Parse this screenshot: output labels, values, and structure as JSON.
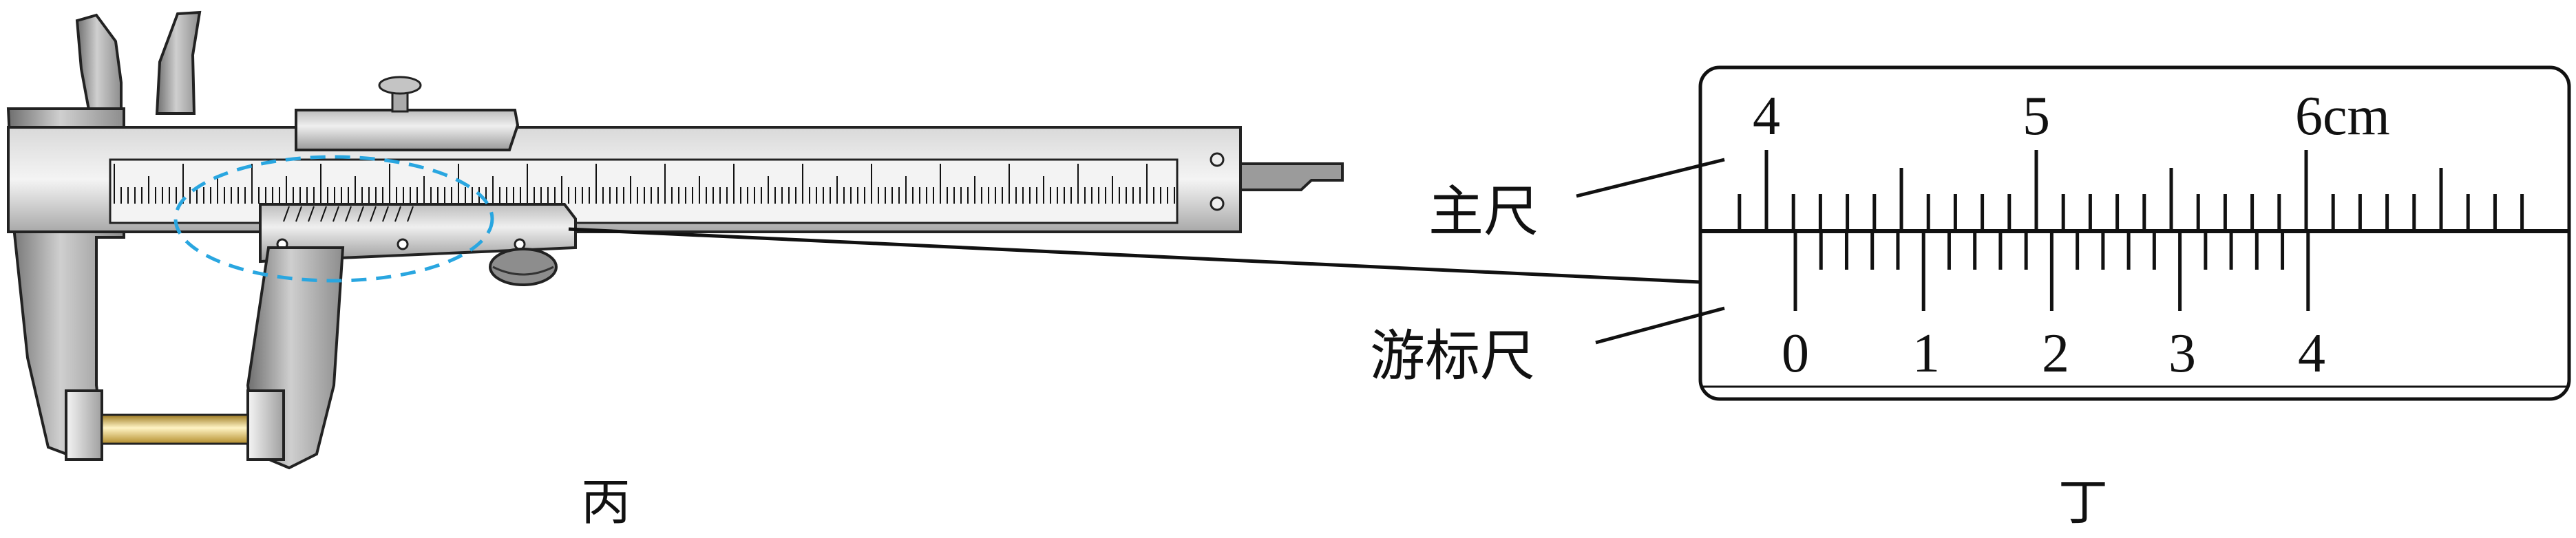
{
  "caliper": {
    "caption": "丙"
  },
  "detail": {
    "caption": "丁",
    "main_scale_label": "主尺",
    "vernier_scale_label": "游标尺",
    "main_scale_numbers": [
      "4",
      "5",
      "6cm"
    ],
    "vernier_scale_numbers": [
      "0",
      "1",
      "2",
      "3",
      "4"
    ]
  },
  "colors": {
    "metal_dark": "#8a8a8a",
    "metal_mid": "#b4b4b4",
    "metal_light": "#e9e9e9",
    "highlight_ellipse": "#29a6e0",
    "workpiece": "#d8b54a"
  }
}
